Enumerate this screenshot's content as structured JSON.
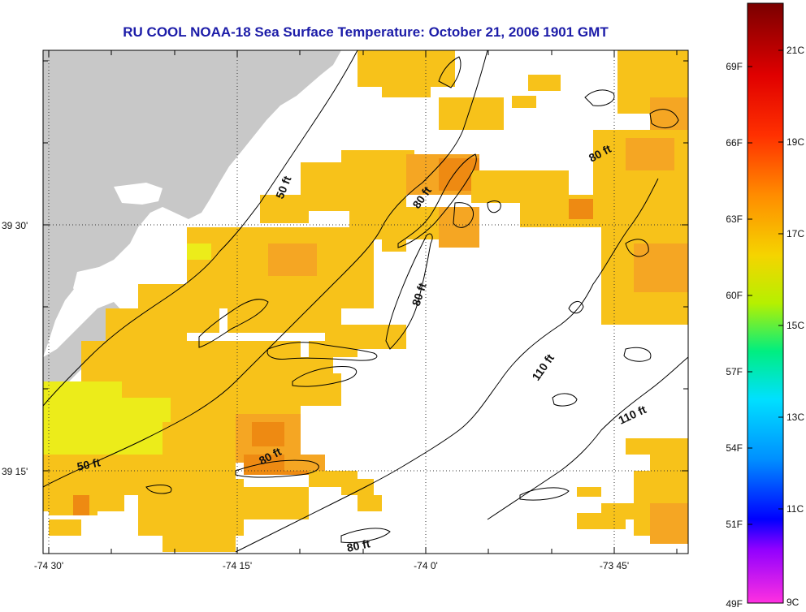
{
  "title": "RU COOL  NOAA-18  Sea Surface Temperature:  October 21, 2006 1901 GMT",
  "map": {
    "lon_ticks": [
      {
        "value": -74.5,
        "label": "-74 30'"
      },
      {
        "value": -74.25,
        "label": "-74 15'"
      },
      {
        "value": -74.0,
        "label": "-74 0'"
      },
      {
        "value": -73.75,
        "label": "-73 45'"
      }
    ],
    "lat_ticks": [
      {
        "value": 39.5,
        "label": "39 30'"
      },
      {
        "value": 39.25,
        "label": "39 15'"
      }
    ],
    "depth_labels": [
      {
        "id": "depth-50ft-north",
        "text": "50 ft"
      },
      {
        "id": "depth-50ft-south",
        "text": "50 ft"
      },
      {
        "id": "depth-80ft-a",
        "text": "80 ft"
      },
      {
        "id": "depth-80ft-b",
        "text": "80 ft"
      },
      {
        "id": "depth-80ft-c",
        "text": "80 ft"
      },
      {
        "id": "depth-80ft-d",
        "text": "80 ft"
      },
      {
        "id": "depth-80ft-e",
        "text": "80 ft"
      },
      {
        "id": "depth-110ft-a",
        "text": "110 ft"
      },
      {
        "id": "depth-110ft-b",
        "text": "110 ft"
      }
    ],
    "colors": {
      "land": "#c8c8c8",
      "sst_warm": "#f7c21a",
      "sst_orange": "#f5a623",
      "sst_yellow": "#ecec1a",
      "sst_deep_orange": "#ee8a12"
    }
  },
  "colorbar": {
    "fahrenheit_labels": [
      "69F",
      "66F",
      "63F",
      "60F",
      "57F",
      "54F",
      "51F",
      "49F"
    ],
    "celsius_labels": [
      "21C",
      "19C",
      "17C",
      "15C",
      "13C",
      "11C",
      "9C"
    ],
    "gradient_stops": [
      "#8b0000",
      "#ff0000",
      "#ff8800",
      "#ffff00",
      "#00ff80",
      "#00ffff",
      "#0000ff",
      "#ff00ff"
    ]
  }
}
